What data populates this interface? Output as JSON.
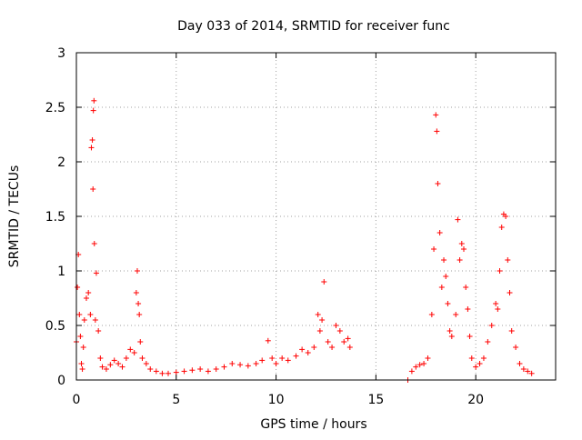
{
  "chart_data": {
    "type": "scatter",
    "title": "Day 033 of 2014, SRMTID for receiver func",
    "xlabel": "GPS time / hours",
    "ylabel": "SRMTID / TECUs",
    "xlim": [
      0,
      24
    ],
    "ylim": [
      0,
      3
    ],
    "x_ticks": [
      0,
      5,
      10,
      15,
      20
    ],
    "x_tick_labels": [
      "0",
      "5",
      "10",
      "15",
      "20"
    ],
    "y_ticks": [
      0,
      0.5,
      1,
      1.5,
      2,
      2.5,
      3
    ],
    "y_tick_labels": [
      "0",
      "0.5",
      "1",
      "1.5",
      "2",
      "2.5",
      "3"
    ],
    "grid": true,
    "marker": "+",
    "series_color": "#ff0000",
    "series": [
      {
        "name": "SRMTID",
        "x": [
          0.0,
          0.05,
          0.1,
          0.15,
          0.2,
          0.25,
          0.3,
          0.35,
          0.4,
          0.5,
          0.6,
          0.7,
          0.75,
          0.8,
          0.83,
          0.85,
          0.88,
          0.9,
          0.95,
          1.0,
          1.1,
          1.2,
          1.3,
          1.5,
          1.7,
          1.9,
          2.1,
          2.3,
          2.5,
          2.7,
          2.9,
          3.0,
          3.05,
          3.1,
          3.15,
          3.2,
          3.3,
          3.5,
          3.7,
          4.0,
          4.3,
          4.6,
          5.0,
          5.4,
          5.8,
          6.2,
          6.6,
          7.0,
          7.4,
          7.8,
          8.2,
          8.6,
          9.0,
          9.3,
          9.6,
          9.8,
          10.0,
          10.3,
          10.6,
          11.0,
          11.3,
          11.6,
          11.9,
          12.1,
          12.2,
          12.3,
          12.4,
          12.6,
          12.8,
          13.0,
          13.2,
          13.4,
          13.6,
          13.7,
          16.6,
          16.8,
          17.0,
          17.2,
          17.4,
          17.6,
          17.8,
          17.9,
          18.0,
          18.05,
          18.1,
          18.2,
          18.3,
          18.4,
          18.5,
          18.6,
          18.7,
          18.8,
          19.0,
          19.1,
          19.2,
          19.3,
          19.4,
          19.5,
          19.6,
          19.7,
          19.8,
          20.0,
          20.2,
          20.4,
          20.6,
          20.8,
          21.0,
          21.1,
          21.2,
          21.3,
          21.4,
          21.5,
          21.6,
          21.7,
          21.8,
          22.0,
          22.2,
          22.4,
          22.6,
          22.8
        ],
        "y": [
          0.35,
          0.85,
          1.15,
          0.6,
          0.4,
          0.15,
          0.1,
          0.3,
          0.55,
          0.75,
          0.8,
          0.6,
          2.13,
          2.2,
          1.75,
          2.47,
          2.56,
          1.25,
          0.55,
          0.98,
          0.45,
          0.2,
          0.12,
          0.1,
          0.14,
          0.18,
          0.15,
          0.12,
          0.2,
          0.28,
          0.25,
          0.8,
          1.0,
          0.7,
          0.6,
          0.35,
          0.2,
          0.15,
          0.1,
          0.08,
          0.06,
          0.06,
          0.07,
          0.08,
          0.09,
          0.1,
          0.08,
          0.1,
          0.12,
          0.15,
          0.14,
          0.13,
          0.15,
          0.18,
          0.36,
          0.2,
          0.15,
          0.2,
          0.18,
          0.22,
          0.28,
          0.25,
          0.3,
          0.6,
          0.45,
          0.55,
          0.9,
          0.35,
          0.3,
          0.5,
          0.45,
          0.35,
          0.38,
          0.3,
          0.0,
          0.08,
          0.12,
          0.14,
          0.15,
          0.2,
          0.6,
          1.2,
          2.43,
          2.28,
          1.8,
          1.35,
          0.85,
          1.1,
          0.95,
          0.7,
          0.45,
          0.4,
          0.6,
          1.47,
          1.1,
          1.25,
          1.2,
          0.85,
          0.65,
          0.4,
          0.2,
          0.12,
          0.15,
          0.2,
          0.35,
          0.5,
          0.7,
          0.65,
          1.0,
          1.4,
          1.52,
          1.5,
          1.1,
          0.8,
          0.45,
          0.3,
          0.15,
          0.1,
          0.08,
          0.06
        ]
      }
    ]
  }
}
